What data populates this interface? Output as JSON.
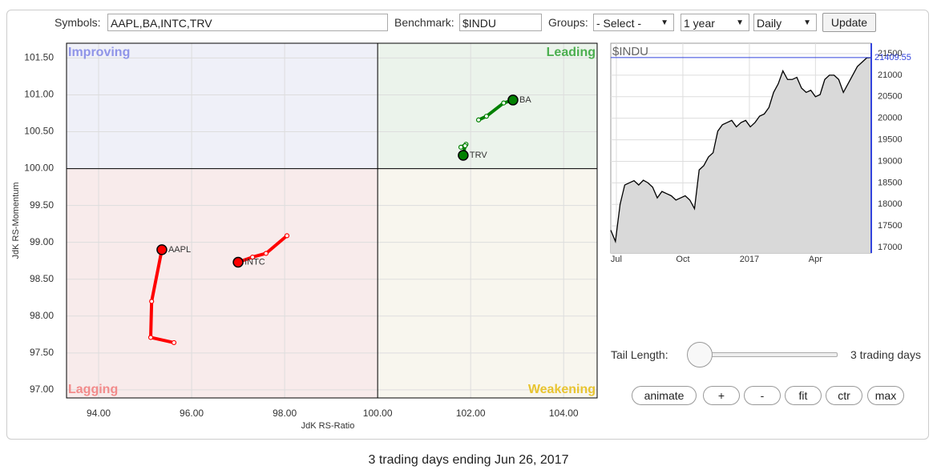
{
  "toolbar": {
    "symbols_label": "Symbols:",
    "symbols": "AAPL,BA,INTC,TRV",
    "benchmark_label": "Benchmark:",
    "benchmark": "$INDU",
    "groups_label": "Groups:",
    "groups": "- Select -",
    "period": "1 year",
    "frequency": "Daily",
    "update": "Update"
  },
  "chart_data": [
    {
      "type": "rrg",
      "xlabel": "JdK RS-Ratio",
      "ylabel": "JdK RS-Momentum",
      "xlim": [
        93.31,
        104.72
      ],
      "ylim": [
        96.89,
        101.7
      ],
      "quadrant_center": [
        100,
        100
      ],
      "xticks": [
        {
          "value": 94,
          "label": "94.00"
        },
        {
          "value": 96,
          "label": "96.00"
        },
        {
          "value": 98,
          "label": "98.00"
        },
        {
          "value": 100,
          "label": "100.00"
        },
        {
          "value": 102,
          "label": "102.00"
        },
        {
          "value": 104,
          "label": "104.00"
        }
      ],
      "yticks": [
        {
          "value": 97,
          "label": "97.00"
        },
        {
          "value": 97.5,
          "label": "97.50"
        },
        {
          "value": 98,
          "label": "98.00"
        },
        {
          "value": 98.5,
          "label": "98.50"
        },
        {
          "value": 99,
          "label": "99.00"
        },
        {
          "value": 99.5,
          "label": "99.50"
        },
        {
          "value": 100,
          "label": "100.00"
        },
        {
          "value": 100.5,
          "label": "100.50"
        },
        {
          "value": 101,
          "label": "101.00"
        },
        {
          "value": 101.5,
          "label": "101.50"
        }
      ],
      "grid": true,
      "quadrants": [
        {
          "name": "Improving",
          "color": "#8f94e8",
          "fill": "#eff0f8"
        },
        {
          "name": "Leading",
          "color": "#4caf50",
          "fill": "#ebf3eb"
        },
        {
          "name": "Lagging",
          "color": "#f28b8b",
          "fill": "#f8ebeb"
        },
        {
          "name": "Weakening",
          "color": "#e8c430",
          "fill": "#f8f6ee"
        }
      ],
      "series": [
        {
          "name": "AAPL",
          "color": "#ff0000",
          "x": [
            95.62,
            95.12,
            95.14,
            95.36
          ],
          "values": [
            97.64,
            97.71,
            98.2,
            98.9
          ]
        },
        {
          "name": "BA",
          "color": "#008000",
          "x": [
            102.17,
            102.34,
            102.71,
            102.91
          ],
          "values": [
            100.66,
            100.71,
            100.89,
            100.93
          ]
        },
        {
          "name": "INTC",
          "color": "#ff0000",
          "x": [
            98.05,
            97.6,
            97.31,
            97.0
          ],
          "values": [
            99.09,
            98.85,
            98.8,
            98.73
          ]
        },
        {
          "name": "TRV",
          "color": "#008000",
          "x": [
            101.9,
            101.79,
            101.88,
            101.84
          ],
          "values": [
            100.33,
            100.29,
            100.31,
            100.18
          ]
        }
      ]
    },
    {
      "type": "line",
      "title": "$INDU",
      "color": "#000000",
      "values": [
        17400,
        17140,
        18000,
        18450,
        18500,
        18550,
        18450,
        18560,
        18500,
        18400,
        18150,
        18300,
        18250,
        18200,
        18100,
        18150,
        18200,
        18100,
        17900,
        18800,
        18900,
        19100,
        19200,
        19700,
        19850,
        19900,
        19950,
        19800,
        19900,
        19950,
        19800,
        19900,
        20050,
        20100,
        20250,
        20600,
        20800,
        21100,
        20900,
        20900,
        20950,
        20700,
        20600,
        20650,
        20500,
        20550,
        20900,
        21000,
        21000,
        20900,
        20600,
        20800,
        21000,
        21200,
        21300,
        21400,
        21409.55
      ],
      "xlim": [
        0,
        56
      ],
      "xticks": [
        {
          "value": 1.2,
          "label": "Jul"
        },
        {
          "value": 15.5,
          "label": "Oct"
        },
        {
          "value": 29.8,
          "label": "2017"
        },
        {
          "value": 44,
          "label": "Apr"
        }
      ],
      "ylim": [
        16870,
        21742
      ],
      "yticks": [
        17000,
        17500,
        18000,
        18500,
        19000,
        19500,
        20000,
        20500,
        21000,
        21500
      ],
      "grid": true
    }
  ],
  "controls": {
    "tail_label": "Tail Length:",
    "tail_value": "3 trading days",
    "buttons": [
      "animate",
      "+",
      "-",
      "fit",
      "ctr",
      "max"
    ]
  },
  "caption": "3 trading days ending Jun 26, 2017"
}
